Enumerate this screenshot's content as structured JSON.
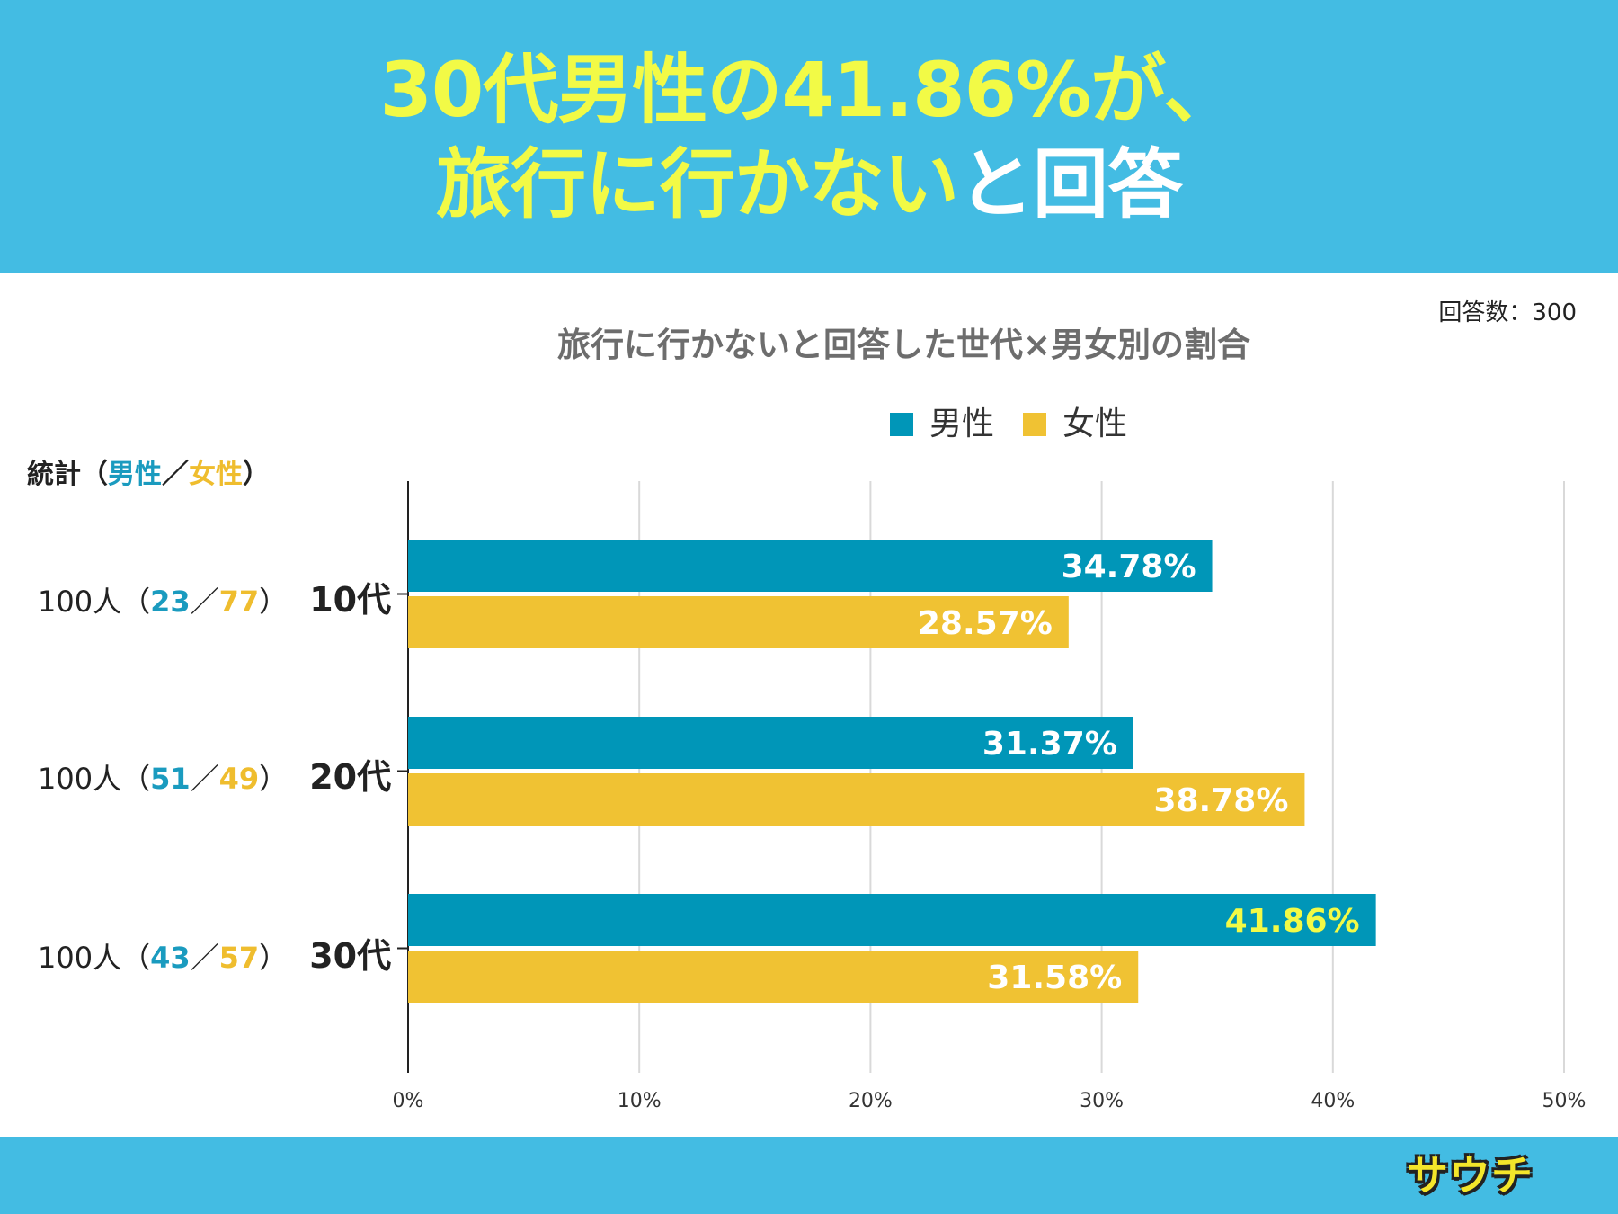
{
  "headline": {
    "line1": "30代男性の41.86%が、",
    "line2_highlight": "旅行に行かない",
    "line2_rest": "と回答"
  },
  "respondents": "回答数：300",
  "stats_header": {
    "prefix": "統計（",
    "male": "男性",
    "sep": "／",
    "female": "女性",
    "suffix": "）"
  },
  "rows": [
    {
      "total": "100人（",
      "male_n": "23",
      "sep": "／",
      "female_n": "77",
      "close": "）",
      "age": "10代"
    },
    {
      "total": "100人（",
      "male_n": "51",
      "sep": "／",
      "female_n": "49",
      "close": "）",
      "age": "20代"
    },
    {
      "total": "100人（",
      "male_n": "43",
      "sep": "／",
      "female_n": "57",
      "close": "）",
      "age": "30代"
    }
  ],
  "logo_text": "サウチ",
  "colors": {
    "male": "#0096b8",
    "female": "#f0c233",
    "header_bg": "#43bce3",
    "highlight_label": "#f2fa46"
  },
  "chart_data": {
    "type": "bar",
    "orientation": "horizontal",
    "title": "旅行に行かないと回答した世代×男女別の割合",
    "categories": [
      "10代",
      "20代",
      "30代"
    ],
    "series": [
      {
        "name": "男性",
        "values": [
          34.78,
          31.37,
          41.86
        ],
        "labels": [
          "34.78%",
          "31.37%",
          "41.86%"
        ]
      },
      {
        "name": "女性",
        "values": [
          28.57,
          38.78,
          31.58
        ],
        "labels": [
          "28.57%",
          "38.78%",
          "31.58%"
        ]
      }
    ],
    "xlim": [
      0,
      50
    ],
    "xticks": [
      "0%",
      "10%",
      "20%",
      "30%",
      "40%",
      "50%"
    ],
    "grid": true,
    "legend": "top",
    "highlight": {
      "series": 0,
      "category": 2
    }
  }
}
